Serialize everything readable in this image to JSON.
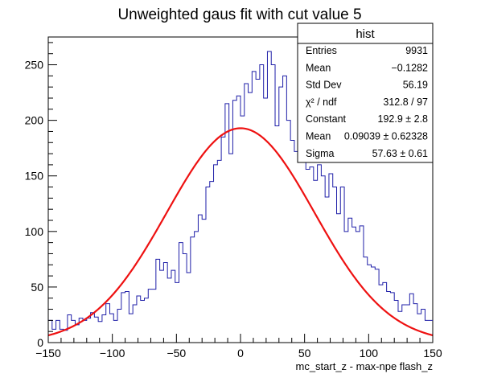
{
  "chart_data": {
    "type": "histogram",
    "title": "Unweighted gaus fit with cut value 5",
    "xlabel": "mc_start_z - max-npe flash_z",
    "ylabel": "",
    "xlim": [
      -150,
      150
    ],
    "ylim": [
      0,
      275
    ],
    "x_ticks": [
      "−150",
      "−100",
      "−50",
      "0",
      "50",
      "100",
      "150"
    ],
    "x_tick_values": [
      -150,
      -100,
      -50,
      0,
      50,
      100,
      150
    ],
    "y_ticks": [
      "0",
      "50",
      "100",
      "150",
      "200",
      "250"
    ],
    "y_tick_values": [
      0,
      50,
      100,
      150,
      200,
      250
    ],
    "bin_width": 3,
    "bin_start": -150,
    "series": [
      {
        "kind": "histogram",
        "color": "#1f1fa8",
        "values": [
          20,
          12,
          20,
          12,
          11,
          25,
          20,
          16,
          22,
          20,
          22,
          27,
          23,
          19,
          25,
          35,
          26,
          20,
          30,
          45,
          46,
          26,
          34,
          42,
          38,
          40,
          48,
          48,
          75,
          65,
          72,
          58,
          65,
          54,
          90,
          80,
          63,
          95,
          100,
          115,
          111,
          140,
          145,
          160,
          164,
          185,
          215,
          170,
          218,
          222,
          204,
          233,
          225,
          244,
          237,
          250,
          220,
          262,
          250,
          195,
          230,
          240,
          200,
          182,
          172,
          178,
          182,
          156,
          158,
          146,
          160,
          150,
          131,
          152,
          140,
          116,
          140,
          100,
          112,
          104,
          100,
          105,
          77,
          70,
          68,
          66,
          52,
          54,
          46,
          45,
          38,
          28,
          34,
          34,
          44,
          35,
          26,
          30,
          20,
          20
        ],
        "note": ""
      },
      {
        "kind": "gaussian-fit",
        "color": "#ee1111",
        "constant": 192.9,
        "mean": 0.09039,
        "sigma": 57.63
      }
    ],
    "grid": false
  },
  "stats": {
    "title": "hist",
    "rows": [
      {
        "label": "Entries",
        "value": "9931"
      },
      {
        "label": "Mean",
        "value": "−0.1282"
      },
      {
        "label": "Std Dev",
        "value": "56.19"
      },
      {
        "label": "χ² / ndf",
        "value": "312.8 / 97"
      },
      {
        "label": "Constant",
        "value": "192.9 ± 2.8"
      },
      {
        "label": "Mean",
        "value": "0.09039 ± 0.62328"
      },
      {
        "label": "Sigma",
        "value": "57.63 ± 0.61"
      }
    ]
  }
}
